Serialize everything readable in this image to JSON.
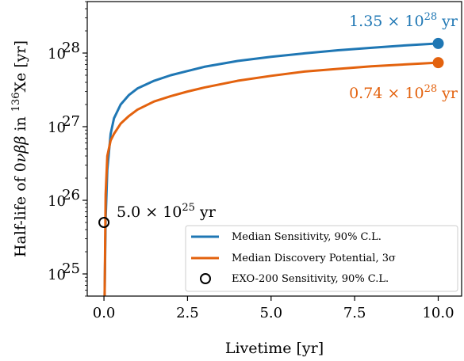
{
  "chart_data": {
    "type": "line",
    "title": "",
    "xlabel": "Livetime [yr]",
    "ylabel": "Half-life of 0νββ in ¹³⁶Xe [yr]",
    "xlim": [
      -0.5,
      10.7
    ],
    "ylim": [
      5e+24,
      5e+28
    ],
    "yscale": "log",
    "grid": false,
    "legend_position": "lower-right",
    "x_ticks": [
      0.0,
      2.5,
      5.0,
      7.5,
      10.0
    ],
    "x_tick_labels": [
      "0.0",
      "2.5",
      "5.0",
      "7.5",
      "10.0"
    ],
    "y_ticks": [
      1e+25,
      1e+26,
      1e+27,
      1e+28
    ],
    "y_tick_labels": [
      {
        "base": "10",
        "exp": "25"
      },
      {
        "base": "10",
        "exp": "26"
      },
      {
        "base": "10",
        "exp": "27"
      },
      {
        "base": "10",
        "exp": "28"
      }
    ],
    "ylabel_parts": {
      "pre": "Half-life of 0",
      "greek": "νββ",
      "mid": " in ",
      "sup": "136",
      "post": "Xe [yr]"
    },
    "series": [
      {
        "name": "Median Sensitivity, 90% C.L.",
        "color": "#1f77b4",
        "x": [
          0.02,
          0.05,
          0.1,
          0.2,
          0.3,
          0.5,
          0.75,
          1.0,
          1.5,
          2.0,
          2.5,
          3.0,
          4.0,
          5.0,
          6.0,
          7.0,
          8.0,
          9.0,
          10.0
        ],
        "y": [
          5e+24,
          5.5e+25,
          2.6e+26,
          8e+26,
          1.3e+27,
          2e+27,
          2.7e+27,
          3.3e+27,
          4.2e+27,
          5e+27,
          5.7e+27,
          6.5e+27,
          7.8e+27,
          8.9e+27,
          9.9e+27,
          1.09e+28,
          1.18e+28,
          1.27e+28,
          1.35e+28
        ],
        "end_label": {
          "mantissa": "1.35",
          "base": "10",
          "exp": "28",
          "unit": "yr"
        }
      },
      {
        "name": "Median Discovery Potential, 3σ",
        "color": "#e3620e",
        "x": [
          0.02,
          0.05,
          0.1,
          0.2,
          0.3,
          0.5,
          0.75,
          1.0,
          1.5,
          2.0,
          2.5,
          3.0,
          4.0,
          5.0,
          6.0,
          7.0,
          8.0,
          9.0,
          10.0
        ],
        "y": [
          5e+24,
          1.2e+26,
          4e+26,
          6.5e+26,
          8e+26,
          1.1e+27,
          1.4e+27,
          1.7e+27,
          2.2e+27,
          2.6e+27,
          3e+27,
          3.4e+27,
          4.2e+27,
          4.9e+27,
          5.6e+27,
          6.1e+27,
          6.6e+27,
          7e+27,
          7.4e+27
        ],
        "end_label": {
          "mantissa": "0.74",
          "base": "10",
          "exp": "28",
          "unit": "yr"
        }
      }
    ],
    "points": [
      {
        "name": "EXO-200 Sensitivity, 90% C.L.",
        "x": 0.0,
        "y": 5e+25,
        "marker": "open-circle",
        "label": {
          "mantissa": "5.0",
          "base": "10",
          "exp": "25",
          "unit": "yr"
        }
      }
    ]
  }
}
